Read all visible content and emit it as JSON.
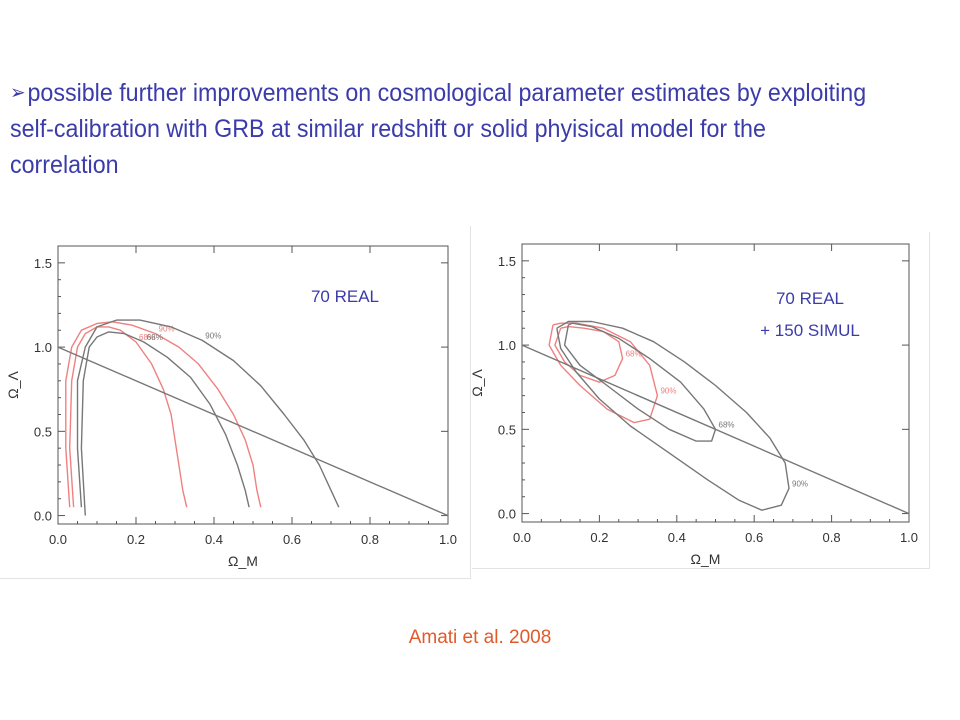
{
  "headline": {
    "bullet": "➢",
    "text": "possible further improvements on cosmological parameter estimates by exploiting self-calibration with GRB at similar redshift or solid phyisical model for the correlation"
  },
  "citation": "Amati et al. 2008",
  "colors": {
    "headline": "#3b3baa",
    "citation": "#e05a2a",
    "contour_real": "#777777",
    "contour_simul": "#f08080"
  },
  "chart_data": [
    {
      "type": "line",
      "annotation": [
        "70 REAL"
      ],
      "xlabel": "Ω_M",
      "ylabel": "Ω_Λ",
      "xlim": [
        0,
        1.0
      ],
      "ylim": [
        -0.05,
        1.6
      ],
      "xticks": [
        "0.0",
        "0.2",
        "0.4",
        "0.6",
        "0.8",
        "1.0"
      ],
      "yticks": [
        "0.0",
        "0.5",
        "1.0",
        "1.5"
      ],
      "series": [
        {
          "name": "68%",
          "color": "#f08080",
          "x": [
            0.04,
            0.03,
            0.035,
            0.05,
            0.07,
            0.1,
            0.13,
            0.16,
            0.2,
            0.24,
            0.27,
            0.29,
            0.3,
            0.31,
            0.32,
            0.33
          ],
          "y": [
            0.05,
            0.4,
            0.8,
            1.0,
            1.08,
            1.12,
            1.12,
            1.1,
            1.03,
            0.9,
            0.75,
            0.6,
            0.45,
            0.3,
            0.15,
            0.05
          ]
        },
        {
          "name": "90%",
          "color": "#f08080",
          "x": [
            0.03,
            0.02,
            0.02,
            0.035,
            0.06,
            0.1,
            0.14,
            0.19,
            0.25,
            0.31,
            0.36,
            0.41,
            0.45,
            0.48,
            0.5,
            0.51,
            0.52
          ],
          "y": [
            0.05,
            0.4,
            0.8,
            1.0,
            1.1,
            1.14,
            1.15,
            1.13,
            1.08,
            1.0,
            0.9,
            0.75,
            0.6,
            0.45,
            0.3,
            0.15,
            0.05
          ]
        },
        {
          "name": "68%",
          "color": "#777777",
          "x": [
            0.07,
            0.06,
            0.065,
            0.08,
            0.1,
            0.13,
            0.17,
            0.22,
            0.28,
            0.34,
            0.39,
            0.43,
            0.46,
            0.48,
            0.49
          ],
          "y": [
            0.0,
            0.4,
            0.8,
            1.0,
            1.06,
            1.09,
            1.08,
            1.03,
            0.94,
            0.82,
            0.66,
            0.48,
            0.3,
            0.15,
            0.05
          ]
        },
        {
          "name": "90%",
          "color": "#777777",
          "x": [
            0.06,
            0.05,
            0.05,
            0.07,
            0.1,
            0.15,
            0.21,
            0.29,
            0.37,
            0.45,
            0.52,
            0.58,
            0.63,
            0.67,
            0.7,
            0.72
          ],
          "y": [
            0.05,
            0.4,
            0.8,
            1.0,
            1.12,
            1.16,
            1.16,
            1.12,
            1.04,
            0.92,
            0.77,
            0.6,
            0.45,
            0.3,
            0.15,
            0.05
          ]
        },
        {
          "name": "",
          "color": "#777777",
          "x": [
            0.0,
            1.0
          ],
          "y": [
            1.0,
            0.0
          ]
        }
      ]
    },
    {
      "type": "line",
      "annotation": [
        "70 REAL",
        "+ 150 SIMUL"
      ],
      "xlabel": "Ω_M",
      "ylabel": "Ω_Λ",
      "xlim": [
        0,
        1.0
      ],
      "ylim": [
        -0.05,
        1.6
      ],
      "xticks": [
        "0.0",
        "0.2",
        "0.4",
        "0.6",
        "0.8",
        "1.0"
      ],
      "yticks": [
        "0.0",
        "0.5",
        "1.0",
        "1.5"
      ],
      "series": [
        {
          "name": "68%",
          "color": "#f08080",
          "x": [
            0.1,
            0.085,
            0.11,
            0.15,
            0.2,
            0.24,
            0.26,
            0.25,
            0.21,
            0.16,
            0.12,
            0.1
          ],
          "y": [
            1.1,
            1.0,
            0.9,
            0.82,
            0.78,
            0.82,
            0.92,
            1.02,
            1.08,
            1.1,
            1.11,
            1.1
          ]
        },
        {
          "name": "90%",
          "color": "#f08080",
          "x": [
            0.08,
            0.07,
            0.1,
            0.15,
            0.22,
            0.29,
            0.33,
            0.35,
            0.33,
            0.28,
            0.21,
            0.14,
            0.1,
            0.08
          ],
          "y": [
            1.12,
            1.0,
            0.88,
            0.76,
            0.62,
            0.54,
            0.56,
            0.7,
            0.88,
            1.02,
            1.1,
            1.13,
            1.13,
            1.12
          ]
        },
        {
          "name": "68%",
          "color": "#777777",
          "x": [
            0.12,
            0.11,
            0.15,
            0.22,
            0.3,
            0.38,
            0.45,
            0.49,
            0.5,
            0.47,
            0.41,
            0.33,
            0.25,
            0.18,
            0.13,
            0.12
          ],
          "y": [
            1.12,
            1.0,
            0.88,
            0.76,
            0.62,
            0.5,
            0.43,
            0.43,
            0.5,
            0.62,
            0.78,
            0.92,
            1.04,
            1.11,
            1.13,
            1.12
          ]
        },
        {
          "name": "90%",
          "color": "#777777",
          "x": [
            0.09,
            0.1,
            0.14,
            0.2,
            0.28,
            0.38,
            0.48,
            0.56,
            0.62,
            0.67,
            0.69,
            0.68,
            0.64,
            0.58,
            0.5,
            0.42,
            0.34,
            0.26,
            0.18,
            0.12,
            0.09
          ],
          "y": [
            1.1,
            0.98,
            0.84,
            0.68,
            0.52,
            0.36,
            0.2,
            0.08,
            0.02,
            0.05,
            0.15,
            0.3,
            0.45,
            0.6,
            0.76,
            0.9,
            1.02,
            1.1,
            1.14,
            1.14,
            1.1
          ]
        },
        {
          "name": "",
          "color": "#777777",
          "x": [
            0.0,
            1.0
          ],
          "y": [
            1.0,
            0.0
          ]
        }
      ]
    }
  ]
}
